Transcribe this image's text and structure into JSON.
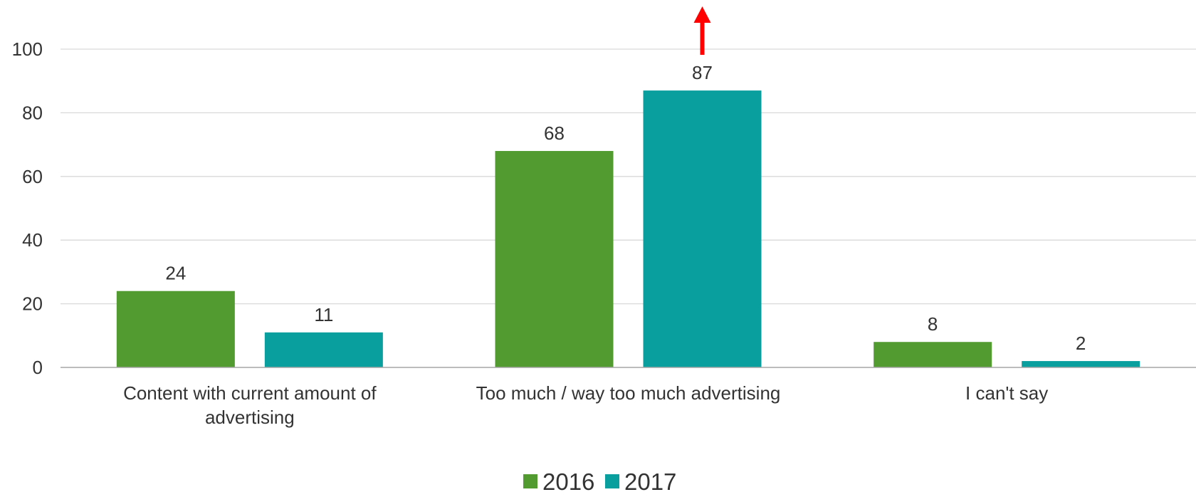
{
  "chart_data": {
    "type": "bar",
    "categories": [
      [
        "Content with current amount of",
        "advertising"
      ],
      [
        "Too much / way too much advertising"
      ],
      [
        "I can't say"
      ]
    ],
    "series": [
      {
        "name": "2016",
        "values": [
          24,
          68,
          8
        ],
        "color": "#529b31"
      },
      {
        "name": "2017",
        "values": [
          11,
          87,
          2
        ],
        "color": "#0a9f9f"
      }
    ],
    "ylim": [
      0,
      100
    ],
    "yticks": [
      "0",
      "20",
      "40",
      "60",
      "80",
      "100"
    ],
    "grid": true,
    "legend": "bottom-center",
    "annotation": {
      "type": "arrow-up",
      "color": "#ff0000",
      "series": "2017",
      "category_index": 1
    }
  }
}
